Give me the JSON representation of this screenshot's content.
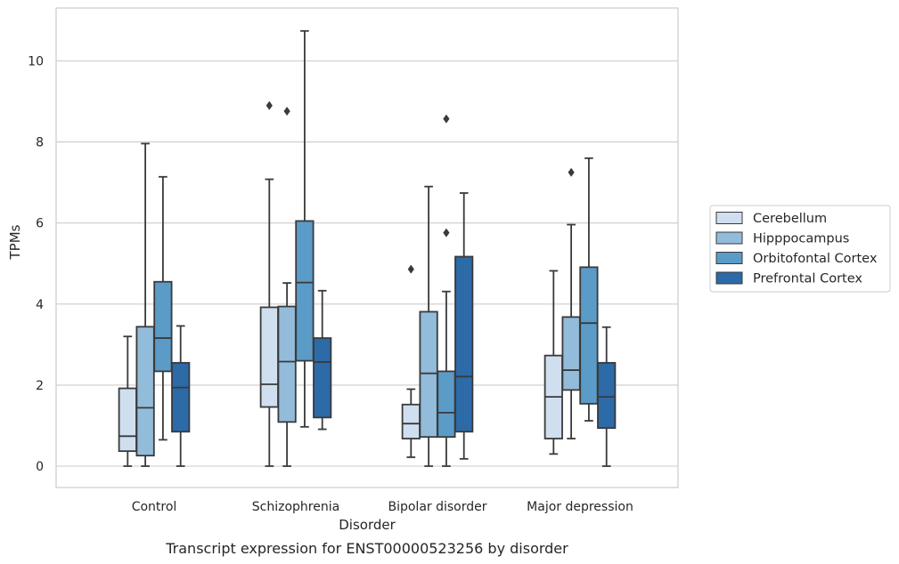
{
  "caption": "Transcript expression for ENST00000523256 by disorder",
  "chart_data": {
    "type": "box",
    "xlabel": "Disorder",
    "ylabel": "TPMs",
    "ylim": [
      -0.5,
      11.35
    ],
    "yticks": [
      0,
      2,
      4,
      6,
      8,
      10
    ],
    "grid": true,
    "legend_position": "right",
    "categories": [
      "Control",
      "Schizophrenia",
      "Bipolar disorder",
      "Major depression"
    ],
    "series": [
      {
        "name": "Cerebellum",
        "color": "#cfdfef",
        "boxes": [
          {
            "whislo": 0.0,
            "q1": 0.37,
            "median": 0.74,
            "q3": 1.92,
            "whishi": 3.2,
            "fliers": []
          },
          {
            "whislo": 0.0,
            "q1": 1.46,
            "median": 2.02,
            "q3": 3.92,
            "whishi": 7.08,
            "fliers": [
              8.9
            ]
          },
          {
            "whislo": 0.22,
            "q1": 0.68,
            "median": 1.05,
            "q3": 1.52,
            "whishi": 1.9,
            "fliers": [
              4.86
            ]
          },
          {
            "whislo": 0.3,
            "q1": 0.68,
            "median": 1.71,
            "q3": 2.73,
            "whishi": 4.82,
            "fliers": []
          }
        ]
      },
      {
        "name": "Hipppocampus",
        "color": "#93bcdb",
        "boxes": [
          {
            "whislo": 0.0,
            "q1": 0.26,
            "median": 1.44,
            "q3": 3.44,
            "whishi": 7.96,
            "fliers": []
          },
          {
            "whislo": 0.0,
            "q1": 1.09,
            "median": 2.58,
            "q3": 3.94,
            "whishi": 4.52,
            "fliers": [
              8.76
            ]
          },
          {
            "whislo": 0.0,
            "q1": 0.72,
            "median": 2.29,
            "q3": 3.81,
            "whishi": 6.9,
            "fliers": []
          },
          {
            "whislo": 0.68,
            "q1": 1.88,
            "median": 2.37,
            "q3": 3.68,
            "whishi": 5.96,
            "fliers": [
              7.25
            ]
          }
        ]
      },
      {
        "name": "Orbitofontal Cortex",
        "color": "#5b9bc7",
        "boxes": [
          {
            "whislo": 0.65,
            "q1": 2.34,
            "median": 3.16,
            "q3": 4.55,
            "whishi": 7.14,
            "fliers": []
          },
          {
            "whislo": 0.97,
            "q1": 2.6,
            "median": 4.53,
            "q3": 6.05,
            "whishi": 10.74,
            "fliers": []
          },
          {
            "whislo": 0.0,
            "q1": 0.72,
            "median": 1.32,
            "q3": 2.34,
            "whishi": 4.31,
            "fliers": [
              5.76,
              8.57
            ]
          },
          {
            "whislo": 1.12,
            "q1": 1.54,
            "median": 3.53,
            "q3": 4.91,
            "whishi": 7.6,
            "fliers": []
          }
        ]
      },
      {
        "name": "Prefrontal Cortex",
        "color": "#2c6aa8",
        "boxes": [
          {
            "whislo": 0.0,
            "q1": 0.85,
            "median": 1.94,
            "q3": 2.55,
            "whishi": 3.46,
            "fliers": []
          },
          {
            "whislo": 0.91,
            "q1": 1.2,
            "median": 2.57,
            "q3": 3.16,
            "whishi": 4.33,
            "fliers": []
          },
          {
            "whislo": 0.18,
            "q1": 0.85,
            "median": 2.21,
            "q3": 5.17,
            "whishi": 6.74,
            "fliers": []
          },
          {
            "whislo": 0.0,
            "q1": 0.94,
            "median": 1.71,
            "q3": 2.55,
            "whishi": 3.43,
            "fliers": []
          }
        ]
      }
    ]
  }
}
